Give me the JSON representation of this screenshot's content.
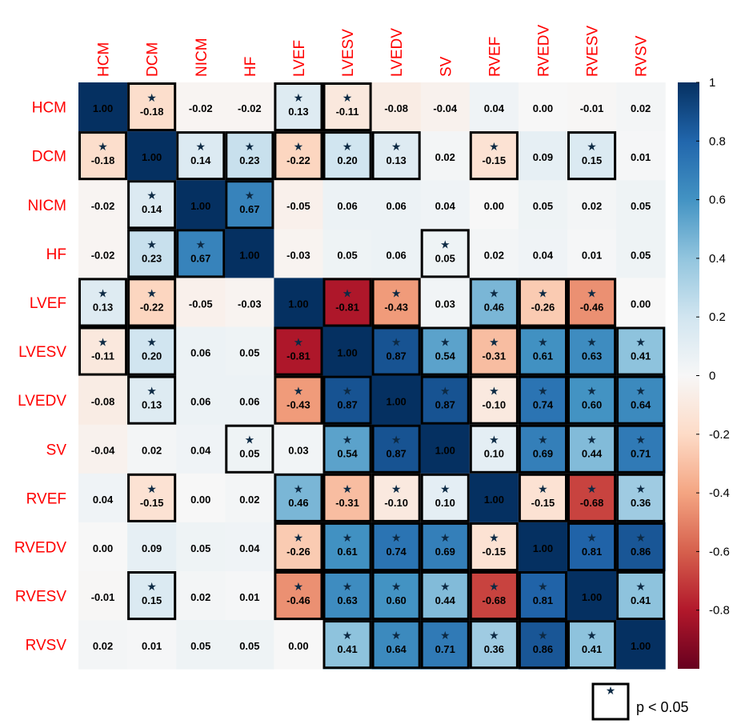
{
  "chart_data": {
    "type": "heatmap",
    "labels": [
      "HCM",
      "DCM",
      "NICM",
      "HF",
      "LVEF",
      "LVESV",
      "LVEDV",
      "SV",
      "RVEF",
      "RVEDV",
      "RVESV",
      "RVSV"
    ],
    "values": [
      [
        1.0,
        -0.18,
        -0.02,
        -0.02,
        0.13,
        -0.11,
        -0.08,
        -0.04,
        0.04,
        0.0,
        -0.01,
        0.02
      ],
      [
        -0.18,
        1.0,
        0.14,
        0.23,
        -0.22,
        0.2,
        0.13,
        0.02,
        -0.15,
        0.09,
        0.15,
        0.01
      ],
      [
        -0.02,
        0.14,
        1.0,
        0.67,
        -0.05,
        0.06,
        0.06,
        0.04,
        0.0,
        0.05,
        0.02,
        0.05
      ],
      [
        -0.02,
        0.23,
        0.67,
        1.0,
        -0.03,
        0.05,
        0.06,
        0.05,
        0.02,
        0.04,
        0.01,
        0.05
      ],
      [
        0.13,
        -0.22,
        -0.05,
        -0.03,
        1.0,
        -0.81,
        -0.43,
        0.03,
        0.46,
        -0.26,
        -0.46,
        0.0
      ],
      [
        -0.11,
        0.2,
        0.06,
        0.05,
        -0.81,
        1.0,
        0.87,
        0.54,
        -0.31,
        0.61,
        0.63,
        0.41
      ],
      [
        -0.08,
        0.13,
        0.06,
        0.06,
        -0.43,
        0.87,
        1.0,
        0.87,
        -0.1,
        0.74,
        0.6,
        0.64
      ],
      [
        -0.04,
        0.02,
        0.04,
        0.05,
        0.03,
        0.54,
        0.87,
        1.0,
        0.1,
        0.69,
        0.44,
        0.71
      ],
      [
        0.04,
        -0.15,
        0.0,
        0.02,
        0.46,
        -0.31,
        -0.1,
        0.1,
        1.0,
        -0.15,
        -0.68,
        0.36
      ],
      [
        0.0,
        0.09,
        0.05,
        0.04,
        -0.26,
        0.61,
        0.74,
        0.69,
        -0.15,
        1.0,
        0.81,
        0.86
      ],
      [
        -0.01,
        0.15,
        0.02,
        0.01,
        -0.46,
        0.63,
        0.6,
        0.44,
        -0.68,
        0.81,
        1.0,
        0.41
      ],
      [
        0.02,
        0.01,
        0.05,
        0.05,
        0.0,
        0.41,
        0.64,
        0.71,
        0.36,
        0.86,
        0.41,
        1.0
      ]
    ],
    "significant": [
      [
        0,
        1,
        0,
        0,
        1,
        1,
        0,
        0,
        0,
        0,
        0,
        0
      ],
      [
        1,
        0,
        1,
        1,
        1,
        1,
        1,
        0,
        1,
        0,
        1,
        0
      ],
      [
        0,
        1,
        0,
        1,
        0,
        0,
        0,
        0,
        0,
        0,
        0,
        0
      ],
      [
        0,
        1,
        1,
        0,
        0,
        0,
        0,
        1,
        0,
        0,
        0,
        0
      ],
      [
        1,
        1,
        0,
        0,
        0,
        1,
        1,
        0,
        1,
        1,
        1,
        0
      ],
      [
        1,
        1,
        0,
        0,
        1,
        0,
        1,
        1,
        1,
        1,
        1,
        1
      ],
      [
        0,
        1,
        0,
        0,
        1,
        1,
        0,
        1,
        1,
        1,
        1,
        1
      ],
      [
        0,
        0,
        0,
        1,
        0,
        1,
        1,
        0,
        1,
        1,
        1,
        1
      ],
      [
        0,
        1,
        0,
        0,
        1,
        1,
        1,
        1,
        0,
        1,
        1,
        1
      ],
      [
        0,
        0,
        0,
        0,
        1,
        1,
        1,
        1,
        1,
        0,
        1,
        1
      ],
      [
        0,
        1,
        0,
        0,
        1,
        1,
        1,
        1,
        1,
        1,
        0,
        1
      ],
      [
        0,
        0,
        0,
        0,
        0,
        1,
        1,
        1,
        1,
        1,
        1,
        0
      ]
    ],
    "colorbar": {
      "range": [
        -1,
        1
      ],
      "ticks": [
        1,
        0.8,
        0.6,
        0.4,
        0.2,
        0,
        -0.2,
        -0.4,
        -0.6,
        -0.8
      ],
      "tick_labels": [
        "1",
        "0.8",
        "0.6",
        "0.4",
        "0.2",
        "0",
        "-0.2",
        "-0.4",
        "-0.6",
        "-0.8"
      ],
      "colors": {
        "pos_strong": "#053061",
        "pos_mid": "#4393c3",
        "neutral": "#f7f7f7",
        "neg_mid": "#f4a582",
        "neg_strong": "#67001f"
      }
    },
    "legend": {
      "label": "p < 0.05",
      "symbol": "★"
    },
    "diagonal_value_color": "#000000",
    "star_color": "#0d2a44"
  }
}
